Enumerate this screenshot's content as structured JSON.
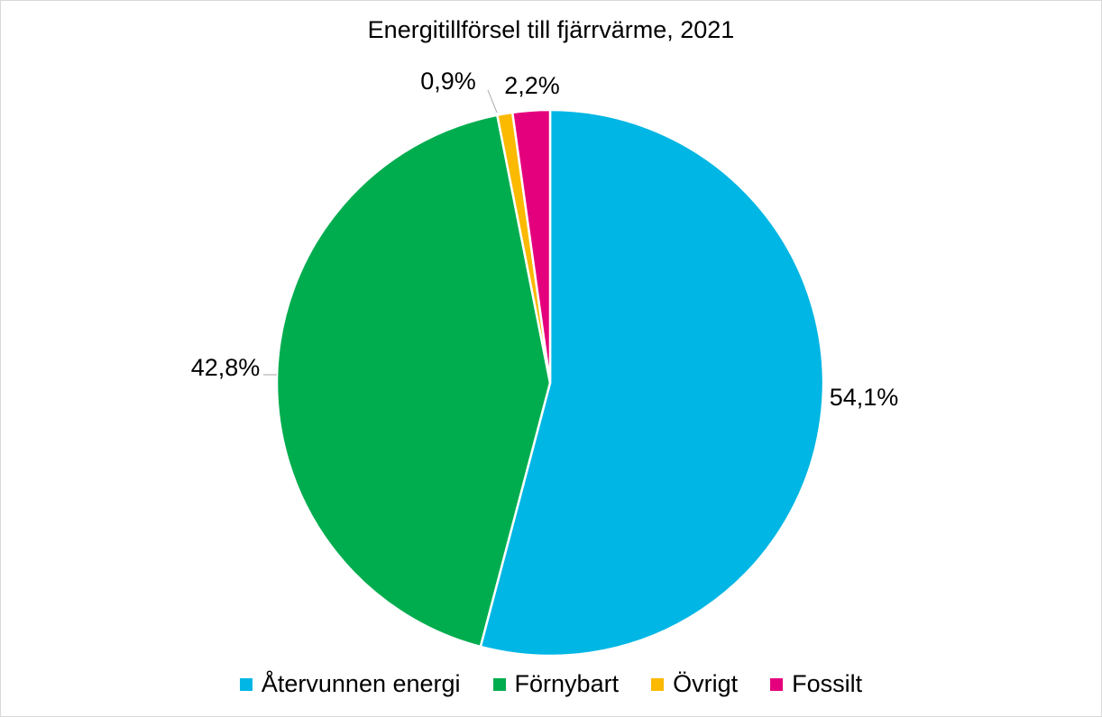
{
  "chart_data": {
    "type": "pie",
    "title": "Energitillförsel till fjärrvärme, 2021",
    "categories": [
      "Återvunnen energi",
      "Förnybart",
      "Övrigt",
      "Fossilt"
    ],
    "values": [
      54.1,
      42.8,
      0.9,
      2.2
    ],
    "labels": [
      "54,1%",
      "42,8%",
      "0,9%",
      "2,2%"
    ],
    "colors": [
      "#00B6E4",
      "#00AD4E",
      "#FBB900",
      "#E4007D"
    ],
    "legend_position": "bottom",
    "start_angle": "12 o'clock",
    "direction": "clockwise"
  }
}
